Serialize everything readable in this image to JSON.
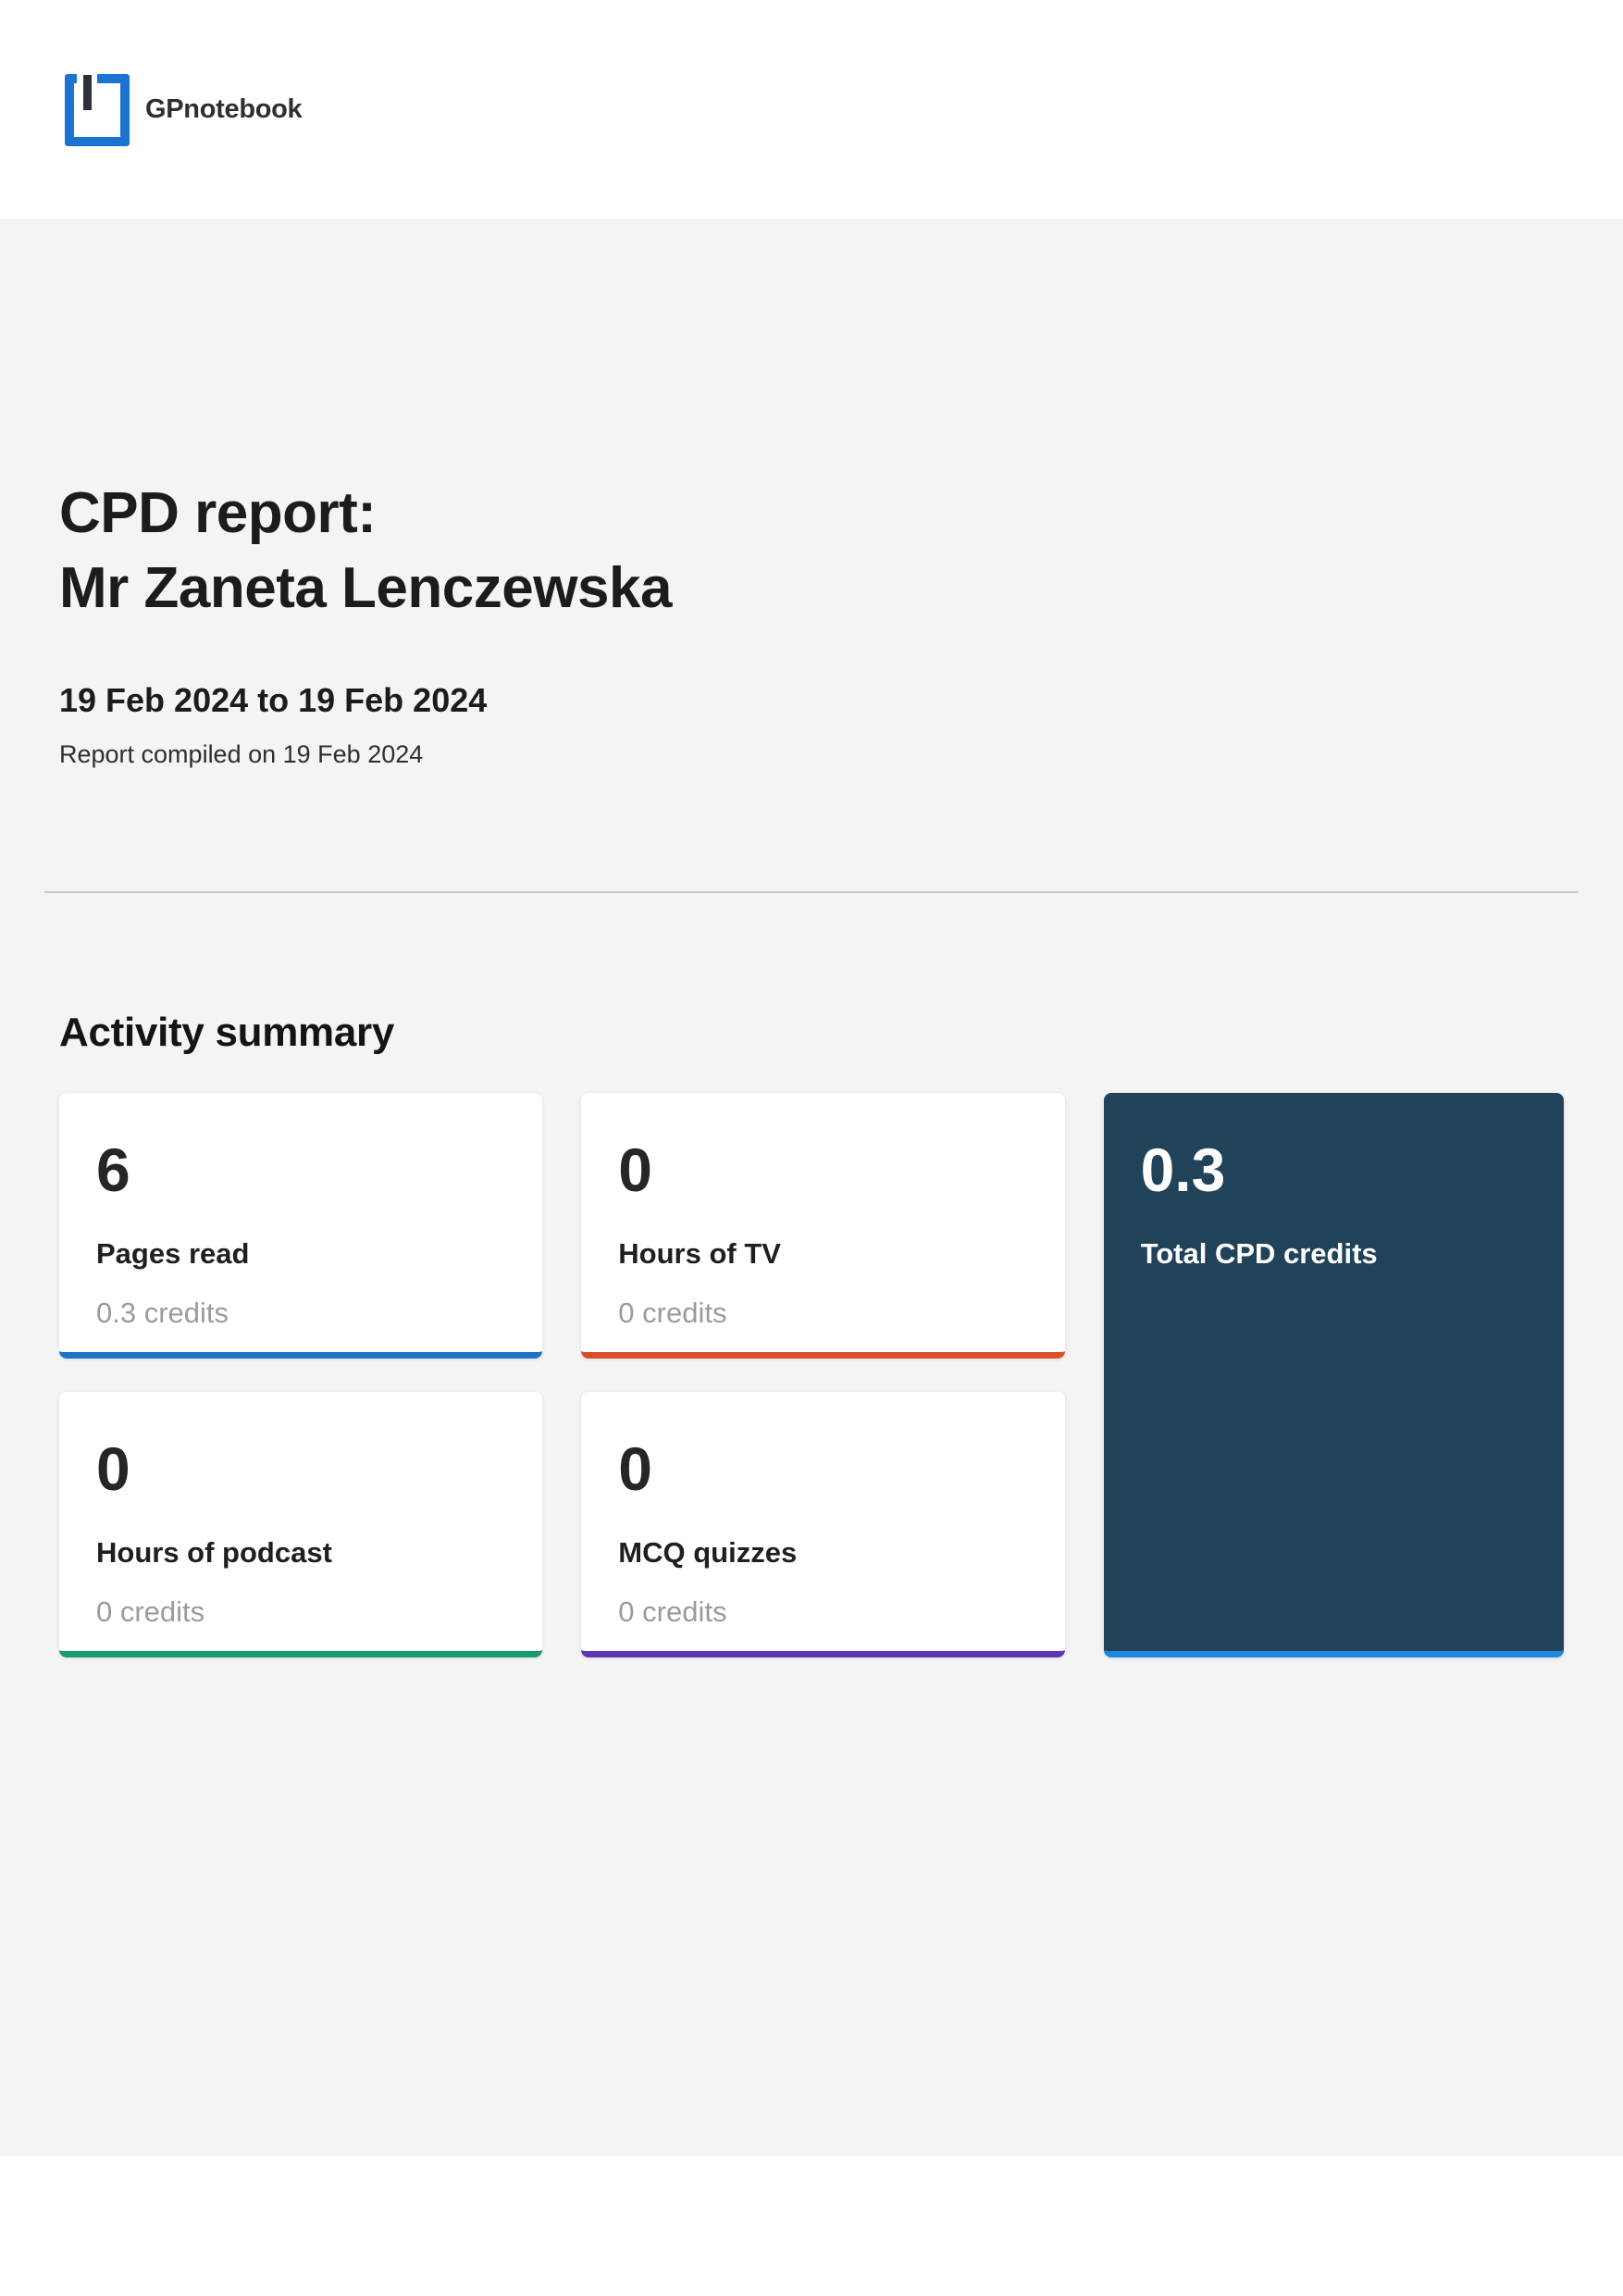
{
  "header": {
    "brand": "GPnotebook"
  },
  "report": {
    "title_line1": "CPD report:",
    "title_line2": "Mr Zaneta Lenczewska",
    "date_range": "19 Feb 2024 to 19 Feb 2024",
    "compiled": "Report compiled on 19 Feb 2024"
  },
  "activity": {
    "heading": "Activity summary",
    "cards": [
      {
        "value": "6",
        "label": "Pages read",
        "credits": "0.3 credits",
        "accent": "#1b74c8"
      },
      {
        "value": "0",
        "label": "Hours of TV",
        "credits": "0 credits",
        "accent": "#d94f2b"
      },
      {
        "value": "0",
        "label": "Hours of podcast",
        "credits": "0 credits",
        "accent": "#199c6c"
      },
      {
        "value": "0",
        "label": "MCQ quizzes",
        "credits": "0 credits",
        "accent": "#5f35b5"
      }
    ],
    "total": {
      "value": "0.3",
      "label": "Total CPD credits",
      "bg": "#21435a",
      "accent": "#1e86de"
    }
  },
  "colors": {
    "logo_blue": "#1b74d2",
    "logo_bar": "#2e3237",
    "section_bg": "#f4f4f4",
    "divider": "#c9c9c9",
    "heading_text": "#1c1c1c",
    "muted_text": "#9b9b9b"
  }
}
